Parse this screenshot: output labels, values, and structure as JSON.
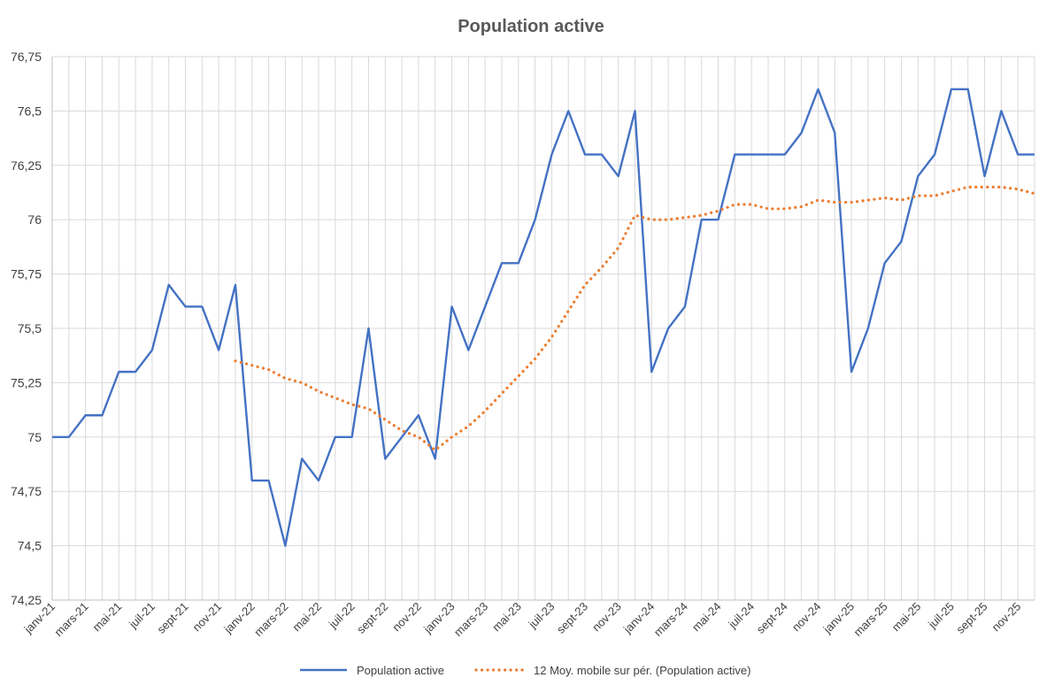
{
  "chart_data": {
    "type": "line",
    "title": "Population active",
    "xlabel": "",
    "ylabel": "",
    "ylim": [
      74.25,
      76.75
    ],
    "yticks": [
      "74,25",
      "74,5",
      "74,75",
      "75",
      "75,25",
      "75,5",
      "75,75",
      "76",
      "76,25",
      "76,5",
      "76,75"
    ],
    "ytick_values": [
      74.25,
      74.5,
      74.75,
      75,
      75.25,
      75.5,
      75.75,
      76,
      76.25,
      76.5,
      76.75
    ],
    "categories": [
      "janv-21",
      "févr-21",
      "mars-21",
      "avr-21",
      "mai-21",
      "juin-21",
      "juil-21",
      "août-21",
      "sept-21",
      "oct-21",
      "nov-21",
      "déc-21",
      "janv-22",
      "févr-22",
      "mars-22",
      "avr-22",
      "mai-22",
      "juin-22",
      "juil-22",
      "août-22",
      "sept-22",
      "oct-22",
      "nov-22",
      "déc-22",
      "janv-23",
      "févr-23",
      "mars-23",
      "avr-23",
      "mai-23",
      "juin-23",
      "juil-23",
      "août-23",
      "sept-23",
      "oct-23",
      "nov-23",
      "déc-23",
      "janv-24",
      "févr-24",
      "mars-24",
      "avr-24",
      "mai-24",
      "juin-24",
      "juil-24",
      "août-24",
      "sept-24",
      "oct-24",
      "nov-24",
      "déc-24",
      "janv-25",
      "févr-25",
      "mars-25",
      "avr-25",
      "mai-25",
      "juin-25",
      "juil-25",
      "août-25",
      "sept-25",
      "oct-25",
      "nov-25",
      "déc-25"
    ],
    "xtick_labels": [
      "janv-21",
      "mars-21",
      "mai-21",
      "juil-21",
      "sept-21",
      "nov-21",
      "janv-22",
      "mars-22",
      "mai-22",
      "juil-22",
      "sept-22",
      "nov-22",
      "janv-23",
      "mars-23",
      "mai-23",
      "juil-23",
      "sept-23",
      "nov-23",
      "janv-24",
      "mars-24",
      "mai-24",
      "juil-24",
      "sept-24",
      "nov-24",
      "janv-25",
      "mars-25",
      "mai-25",
      "juil-25",
      "sept-25",
      "nov-25"
    ],
    "grid": true,
    "legend_position": "bottom",
    "series": [
      {
        "name": "Population active",
        "color": "#4472C4",
        "style": "solid",
        "values": [
          75.0,
          75.0,
          75.1,
          75.1,
          75.3,
          75.3,
          75.4,
          75.7,
          75.6,
          75.6,
          75.4,
          75.7,
          74.8,
          74.8,
          74.5,
          74.9,
          74.8,
          75.0,
          75.0,
          75.5,
          74.9,
          75.0,
          75.1,
          74.9,
          75.6,
          75.4,
          75.6,
          75.8,
          75.8,
          76.0,
          76.3,
          76.5,
          76.3,
          76.3,
          76.2,
          76.5,
          75.3,
          75.5,
          75.6,
          76.0,
          76.0,
          76.3,
          76.3,
          76.3,
          76.3,
          76.4,
          76.6,
          76.4,
          75.3,
          75.5,
          75.8,
          75.9,
          76.2,
          76.3,
          76.6,
          76.6,
          76.2,
          76.5,
          76.3,
          76.3
        ]
      },
      {
        "name": "12 Moy. mobile sur pér. (Population active)",
        "color": "#ED7D31",
        "style": "dotted",
        "values": [
          null,
          null,
          null,
          null,
          null,
          null,
          null,
          null,
          null,
          null,
          null,
          75.35,
          75.33,
          75.31,
          75.27,
          75.25,
          75.21,
          75.18,
          75.15,
          75.13,
          75.08,
          75.03,
          75.0,
          74.94,
          75.0,
          75.05,
          75.12,
          75.2,
          75.28,
          75.36,
          75.46,
          75.58,
          75.7,
          75.78,
          75.87,
          76.02,
          76.0,
          76.0,
          76.01,
          76.02,
          76.04,
          76.07,
          76.07,
          76.05,
          76.05,
          76.06,
          76.09,
          76.08,
          76.08,
          76.09,
          76.1,
          76.09,
          76.11,
          76.11,
          76.13,
          76.15,
          76.15,
          76.15,
          76.14,
          76.12
        ]
      }
    ]
  }
}
